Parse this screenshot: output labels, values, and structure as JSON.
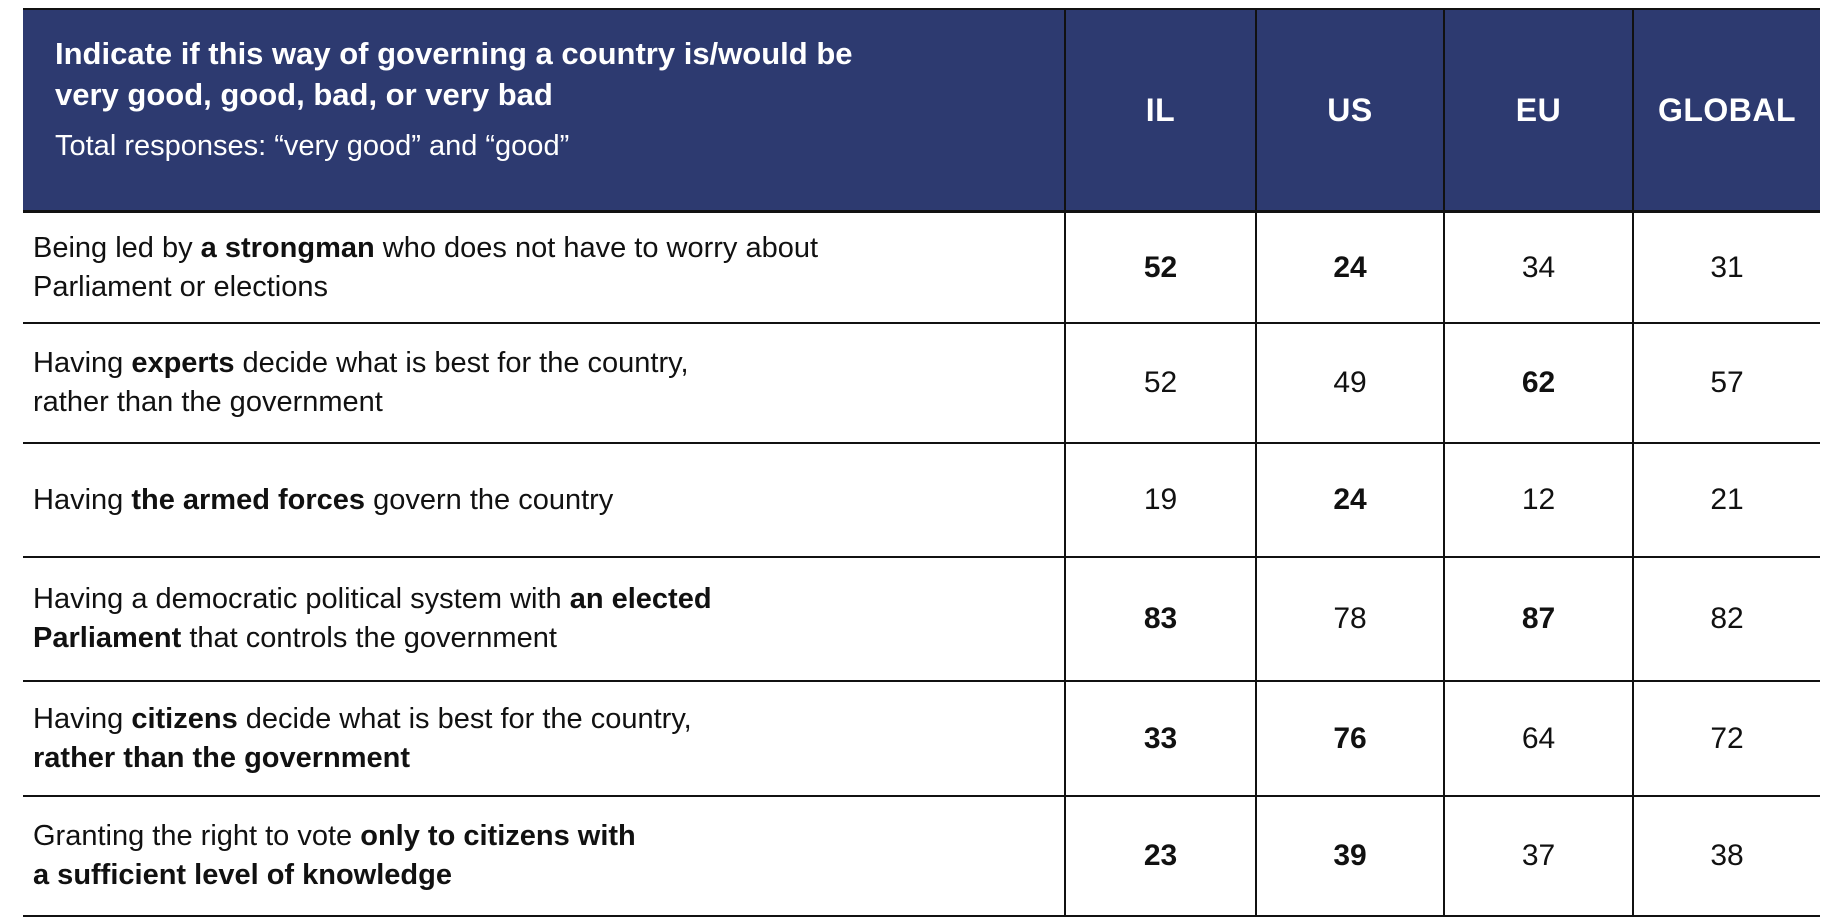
{
  "header": {
    "title": "Indicate if this way of governing a country is/would be\nvery good, good, bad, or very bad",
    "subtitle": "Total responses: “very good” and “good”",
    "columns": [
      "IL",
      "US",
      "EU",
      "GLOBAL"
    ]
  },
  "colors": {
    "header_bg": "#2d3a70",
    "header_text": "#ffffff",
    "body_text": "#111111",
    "border": "#111111"
  },
  "rows": [
    {
      "question": [
        {
          "text": "Being led by ",
          "bold": false
        },
        {
          "text": "a strongman",
          "bold": true
        },
        {
          "text": " who does not have to worry about\nParliament or elections",
          "bold": false
        }
      ],
      "values": [
        {
          "v": "52",
          "bold": true
        },
        {
          "v": "24",
          "bold": true
        },
        {
          "v": "34",
          "bold": false
        },
        {
          "v": "31",
          "bold": false
        }
      ]
    },
    {
      "question": [
        {
          "text": "Having ",
          "bold": false
        },
        {
          "text": "experts",
          "bold": true
        },
        {
          "text": " decide what is best for the country,\nrather than the government",
          "bold": false
        }
      ],
      "values": [
        {
          "v": "52",
          "bold": false
        },
        {
          "v": "49",
          "bold": false
        },
        {
          "v": "62",
          "bold": true
        },
        {
          "v": "57",
          "bold": false
        }
      ]
    },
    {
      "question": [
        {
          "text": "Having ",
          "bold": false
        },
        {
          "text": "the armed forces",
          "bold": true
        },
        {
          "text": " govern the country",
          "bold": false
        }
      ],
      "values": [
        {
          "v": "19",
          "bold": false
        },
        {
          "v": "24",
          "bold": true
        },
        {
          "v": "12",
          "bold": false
        },
        {
          "v": "21",
          "bold": false
        }
      ]
    },
    {
      "question": [
        {
          "text": "Having a democratic political system with ",
          "bold": false
        },
        {
          "text": "an elected\nParliament",
          "bold": true
        },
        {
          "text": " that controls the government",
          "bold": false
        }
      ],
      "values": [
        {
          "v": "83",
          "bold": true
        },
        {
          "v": "78",
          "bold": false
        },
        {
          "v": "87",
          "bold": true
        },
        {
          "v": "82",
          "bold": false
        }
      ]
    },
    {
      "question": [
        {
          "text": "Having ",
          "bold": false
        },
        {
          "text": "citizens",
          "bold": true
        },
        {
          "text": " decide what is best for the country,\n",
          "bold": false
        },
        {
          "text": "rather than the government",
          "bold": true
        }
      ],
      "values": [
        {
          "v": "33",
          "bold": true
        },
        {
          "v": "76",
          "bold": true
        },
        {
          "v": "64",
          "bold": false
        },
        {
          "v": "72",
          "bold": false
        }
      ]
    },
    {
      "question": [
        {
          "text": "Granting the right to vote ",
          "bold": false
        },
        {
          "text": "only to citizens with\na sufficient level of knowledge",
          "bold": true
        }
      ],
      "values": [
        {
          "v": "23",
          "bold": true
        },
        {
          "v": "39",
          "bold": true
        },
        {
          "v": "37",
          "bold": false
        },
        {
          "v": "38",
          "bold": false
        }
      ]
    }
  ]
}
